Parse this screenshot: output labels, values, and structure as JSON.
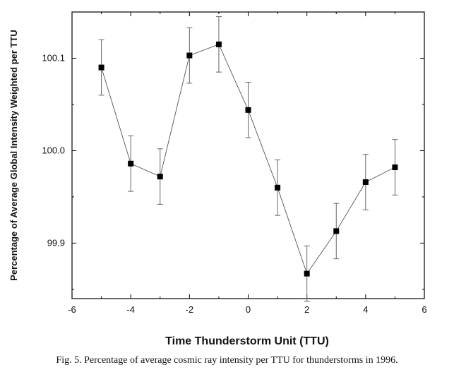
{
  "chart_data": {
    "type": "scatter",
    "title": "",
    "xlabel": "Time Thunderstorm Unit (TTU)",
    "ylabel": "Percentage of Average Global Intensity Weighted per TTU",
    "xlim": [
      -6,
      6
    ],
    "ylim": [
      99.84,
      100.15
    ],
    "xticks": [
      -6,
      -4,
      -2,
      0,
      2,
      4,
      6
    ],
    "xtick_labels": [
      "-6",
      "-4",
      "-2",
      "0",
      "2",
      "4",
      "6"
    ],
    "yticks": [
      99.9,
      100.0,
      100.1
    ],
    "ytick_labels": [
      "99.9",
      "100.0",
      "100.1"
    ],
    "grid": false,
    "series": [
      {
        "name": "Cosmic ray intensity",
        "x": [
          -5,
          -4,
          -3,
          -2,
          -1,
          0,
          1,
          2,
          3,
          4,
          5
        ],
        "y": [
          100.09,
          99.986,
          99.972,
          100.103,
          100.115,
          100.044,
          99.96,
          99.867,
          99.913,
          99.966,
          99.982
        ],
        "error": [
          0.03,
          0.03,
          0.03,
          0.03,
          0.03,
          0.03,
          0.03,
          0.03,
          0.03,
          0.03,
          0.03
        ],
        "marker": "square",
        "line": true,
        "color": "#000000"
      }
    ]
  },
  "caption": "Fig. 5. Percentage of average cosmic ray intensity per TTU for thunderstorms in 1996."
}
